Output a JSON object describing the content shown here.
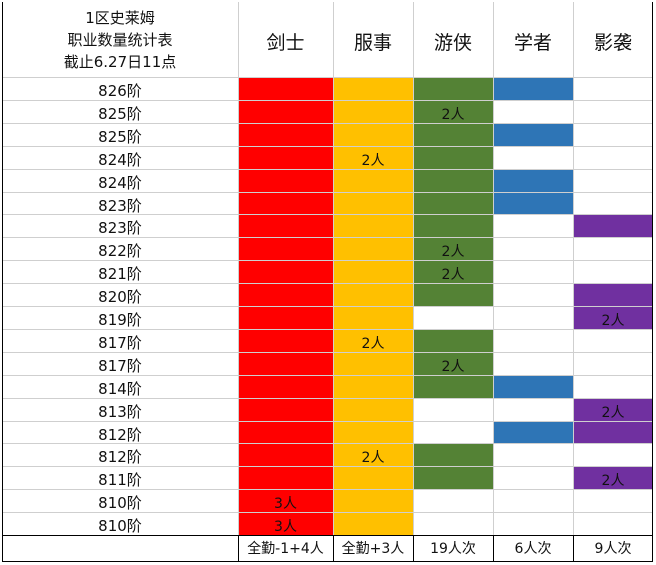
{
  "title_lines": [
    "1区史莱姆",
    "职业数量统计表",
    "截止6.27日11点"
  ],
  "headers": [
    "剑士",
    "服事",
    "游侠",
    "学者",
    "影袭"
  ],
  "ranks": [
    "826阶",
    "825阶",
    "825阶",
    "824阶",
    "824阶",
    "823阶",
    "823阶",
    "822阶",
    "821阶",
    "820阶",
    "819阶",
    "817阶",
    "817阶",
    "814阶",
    "813阶",
    "812阶",
    "812阶",
    "811阶",
    "810阶",
    "810阶"
  ],
  "colors": {
    "swordsman": "#ff0000",
    "acolyte": "#ffc000",
    "ranger": "#548235",
    "scholar": "#2e75b6",
    "shadow": "#7030a0"
  },
  "cells": [
    {
      "col": 0,
      "start": 0,
      "end": 17,
      "color": "swordsman",
      "label": ""
    },
    {
      "col": 0,
      "start": 18,
      "end": 18,
      "color": "swordsman",
      "label": "3人"
    },
    {
      "col": 0,
      "start": 19,
      "end": 19,
      "color": "swordsman",
      "label": "3人"
    },
    {
      "col": 1,
      "start": 0,
      "end": 19,
      "color": "acolyte",
      "label": ""
    },
    {
      "col": 2,
      "start": 0,
      "end": 9,
      "color": "ranger",
      "label": ""
    },
    {
      "col": 2,
      "start": 11,
      "end": 13,
      "color": "ranger",
      "label": ""
    },
    {
      "col": 2,
      "start": 16,
      "end": 17,
      "color": "ranger",
      "label": ""
    },
    {
      "col": 3,
      "start": 0,
      "end": 0,
      "color": "scholar",
      "label": ""
    },
    {
      "col": 3,
      "start": 2,
      "end": 2,
      "color": "scholar",
      "label": ""
    },
    {
      "col": 3,
      "start": 4,
      "end": 5,
      "color": "scholar",
      "label": ""
    },
    {
      "col": 3,
      "start": 13,
      "end": 13,
      "color": "scholar",
      "label": ""
    },
    {
      "col": 3,
      "start": 15,
      "end": 15,
      "color": "scholar",
      "label": ""
    },
    {
      "col": 4,
      "start": 6,
      "end": 6,
      "color": "shadow",
      "label": ""
    },
    {
      "col": 4,
      "start": 9,
      "end": 10,
      "color": "shadow",
      "label": ""
    },
    {
      "col": 4,
      "start": 14,
      "end": 15,
      "color": "shadow",
      "label": ""
    },
    {
      "col": 4,
      "start": 17,
      "end": 17,
      "color": "shadow",
      "label": ""
    }
  ],
  "counts": [
    {
      "col": 1,
      "row": 3,
      "label": "2人"
    },
    {
      "col": 1,
      "row": 11,
      "label": "2人"
    },
    {
      "col": 1,
      "row": 16,
      "label": "2人"
    },
    {
      "col": 2,
      "row": 1,
      "label": "2人"
    },
    {
      "col": 2,
      "row": 7,
      "label": "2人"
    },
    {
      "col": 2,
      "row": 8,
      "label": "2人"
    },
    {
      "col": 2,
      "row": 12,
      "label": "2人"
    },
    {
      "col": 4,
      "row": 10,
      "label": "2人"
    },
    {
      "col": 4,
      "row": 14,
      "label": "2人"
    },
    {
      "col": 4,
      "row": 17,
      "label": "2人"
    }
  ],
  "footer": [
    "全勤-1+4人",
    "全勤+3人",
    "19人次",
    "6人次",
    "9人次"
  ]
}
